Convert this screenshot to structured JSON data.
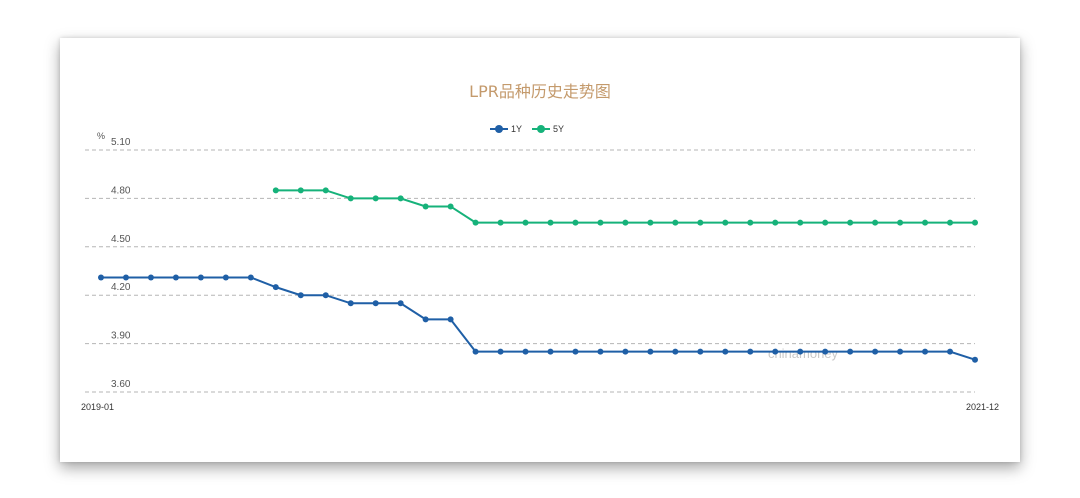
{
  "chart_data": {
    "type": "line",
    "title": "LPR品种历史走势图",
    "ylabel": "%",
    "ylim": [
      3.6,
      5.1
    ],
    "yticks": [
      "5.10",
      "4.80",
      "4.50",
      "4.20",
      "3.90",
      "3.60"
    ],
    "x_start_label": "2019-01",
    "x_end_label": "2021-12",
    "grid": "horizontal-dashed",
    "legend_position": "top-center",
    "watermark": "chinamoney",
    "series": [
      {
        "name": "1Y",
        "color": "#1f5fa6",
        "values": [
          4.31,
          4.31,
          4.31,
          4.31,
          4.31,
          4.31,
          4.31,
          4.25,
          4.2,
          4.2,
          4.15,
          4.15,
          4.15,
          4.05,
          4.05,
          3.85,
          3.85,
          3.85,
          3.85,
          3.85,
          3.85,
          3.85,
          3.85,
          3.85,
          3.85,
          3.85,
          3.85,
          3.85,
          3.85,
          3.85,
          3.85,
          3.85,
          3.85,
          3.85,
          3.85,
          3.8
        ]
      },
      {
        "name": "5Y",
        "color": "#16b27a",
        "values": [
          null,
          null,
          null,
          null,
          null,
          null,
          null,
          4.85,
          4.85,
          4.85,
          4.8,
          4.8,
          4.8,
          4.75,
          4.75,
          4.65,
          4.65,
          4.65,
          4.65,
          4.65,
          4.65,
          4.65,
          4.65,
          4.65,
          4.65,
          4.65,
          4.65,
          4.65,
          4.65,
          4.65,
          4.65,
          4.65,
          4.65,
          4.65,
          4.65,
          4.65
        ]
      }
    ]
  }
}
